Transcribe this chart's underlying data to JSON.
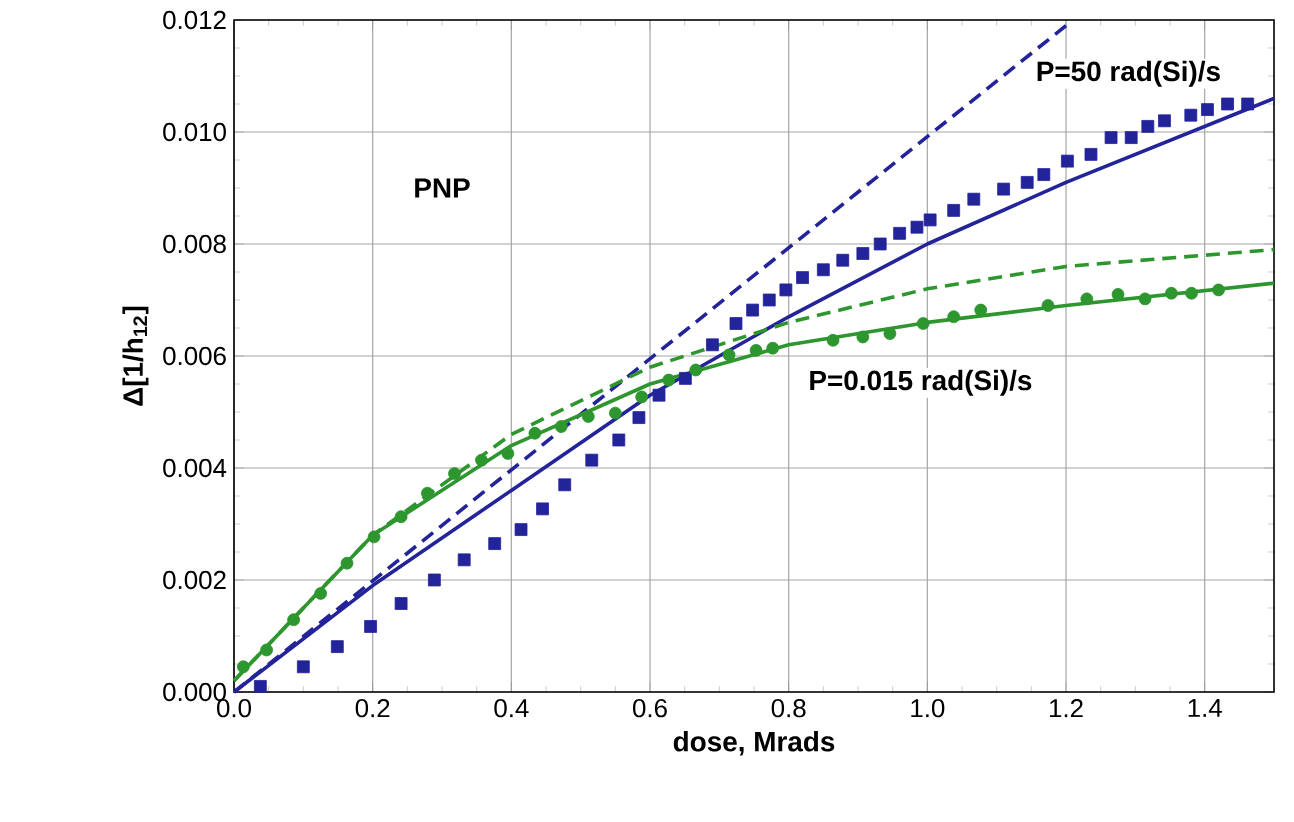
{
  "chart_data": {
    "type": "scatter",
    "xlabel": "dose, Mrads",
    "ylabel": "Δ[1/h$_{12}$]",
    "xlim": [
      0,
      1.5
    ],
    "ylim": [
      0,
      0.012
    ],
    "xticks": [
      {
        "value": 0,
        "label": "0.0"
      },
      {
        "value": 0.2,
        "label": "0.2"
      },
      {
        "value": 0.4,
        "label": "0.4"
      },
      {
        "value": 0.6,
        "label": "0.6"
      },
      {
        "value": 0.8,
        "label": "0.8"
      },
      {
        "value": 1.0,
        "label": "1.0"
      },
      {
        "value": 1.2,
        "label": "1.2"
      },
      {
        "value": 1.4,
        "label": "1.4"
      }
    ],
    "yticks": [
      {
        "value": 0,
        "label": "0.000"
      },
      {
        "value": 0.002,
        "label": "0.002"
      },
      {
        "value": 0.004,
        "label": "0.004"
      },
      {
        "value": 0.006,
        "label": "0.006"
      },
      {
        "value": 0.008,
        "label": "0.008"
      },
      {
        "value": 0.01,
        "label": "0.010"
      },
      {
        "value": 0.012,
        "label": "0.012"
      }
    ],
    "grid": true,
    "series": [
      {
        "marker": "square",
        "color": "#23239a",
        "x": [
          0.038,
          0.1,
          0.149,
          0.197,
          0.241,
          0.289,
          0.332,
          0.376,
          0.414,
          0.445,
          0.477,
          0.516,
          0.555,
          0.584,
          0.613,
          0.651,
          0.69,
          0.724,
          0.748,
          0.772,
          0.796,
          0.82,
          0.85,
          0.878,
          0.907,
          0.932,
          0.96,
          0.985,
          1.004,
          1.038,
          1.067,
          1.11,
          1.144,
          1.168,
          1.202,
          1.236,
          1.265,
          1.294,
          1.318,
          1.342,
          1.38,
          1.404,
          1.433,
          1.462
        ],
        "values": [
          0.0001,
          0.00045,
          0.00081,
          0.00117,
          0.00158,
          0.002,
          0.00236,
          0.00265,
          0.0029,
          0.00327,
          0.0037,
          0.00414,
          0.0045,
          0.0049,
          0.0053,
          0.0056,
          0.0062,
          0.00658,
          0.00682,
          0.007,
          0.00718,
          0.0074,
          0.00754,
          0.00771,
          0.00783,
          0.008,
          0.00819,
          0.0083,
          0.00843,
          0.0086,
          0.0088,
          0.00898,
          0.0091,
          0.00924,
          0.00948,
          0.0096,
          0.0099,
          0.0099,
          0.0101,
          0.0102,
          0.0103,
          0.0104,
          0.0105,
          0.0105
        ]
      },
      {
        "type": "line",
        "line_style": "solid",
        "color": "#23239a",
        "x": [
          0,
          0.2,
          0.4,
          0.6,
          0.8,
          1.0,
          1.2,
          1.4,
          1.5
        ],
        "values": [
          0,
          0.0019,
          0.0036,
          0.0053,
          0.0067,
          0.008,
          0.0091,
          0.0101,
          0.0106
        ]
      },
      {
        "type": "line",
        "line_style": "dashed",
        "color": "#23239a",
        "x": [
          0,
          1.2
        ],
        "values": [
          0,
          0.0119
        ]
      },
      {
        "marker": "circle",
        "color": "#2e962e",
        "x": [
          0.0135,
          0.047,
          0.086,
          0.125,
          0.163,
          0.202,
          0.241,
          0.279,
          0.318,
          0.357,
          0.395,
          0.434,
          0.472,
          0.511,
          0.55,
          0.588,
          0.627,
          0.666,
          0.714,
          0.753,
          0.777,
          0.864,
          0.907,
          0.946,
          0.994,
          1.038,
          1.077,
          1.174,
          1.23,
          1.275,
          1.314,
          1.352,
          1.381,
          1.42
        ],
        "values": [
          0.00045,
          0.00075,
          0.00129,
          0.00176,
          0.0023,
          0.00277,
          0.00313,
          0.00355,
          0.0039,
          0.00414,
          0.00426,
          0.00462,
          0.00474,
          0.00492,
          0.00498,
          0.00527,
          0.00557,
          0.00575,
          0.00602,
          0.0061,
          0.00614,
          0.00628,
          0.00634,
          0.0064,
          0.00658,
          0.0067,
          0.00682,
          0.0069,
          0.00702,
          0.0071,
          0.00702,
          0.00712,
          0.00712,
          0.00718
        ]
      },
      {
        "type": "line",
        "line_style": "solid",
        "color": "#2e962e",
        "x": [
          0,
          0.2,
          0.4,
          0.6,
          0.8,
          1.0,
          1.2,
          1.5
        ],
        "values": [
          0.0002,
          0.0028,
          0.0044,
          0.0055,
          0.0062,
          0.0066,
          0.0069,
          0.0073
        ]
      },
      {
        "type": "line",
        "line_style": "dashed",
        "color": "#2e962e",
        "x": [
          0,
          0.2,
          0.4,
          0.6,
          0.8,
          1.0,
          1.2,
          1.5
        ],
        "values": [
          0.0002,
          0.0028,
          0.0046,
          0.0058,
          0.0066,
          0.0072,
          0.0076,
          0.0079
        ]
      }
    ],
    "annotations": [
      "PNP",
      "P=50 rad(Si)/s",
      "P=0.015 rad(Si)/s"
    ]
  }
}
